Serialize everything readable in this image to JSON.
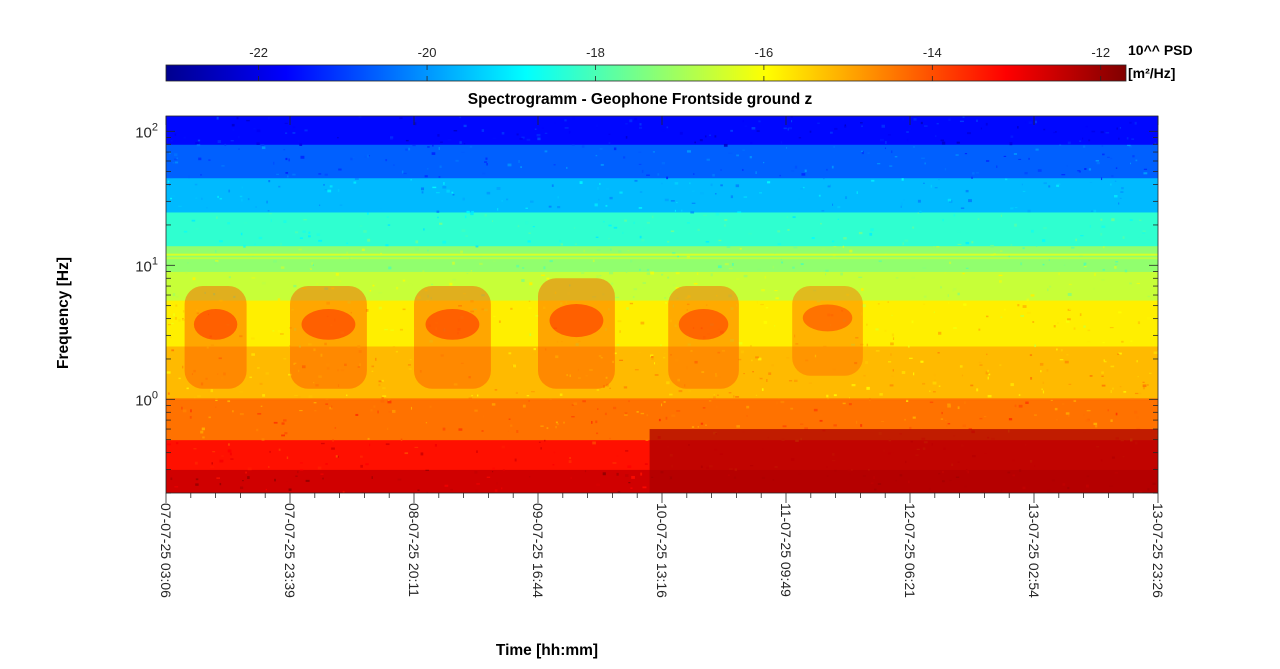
{
  "chart_data": {
    "type": "heatmap",
    "title": "Spectrogramm - Geophone Frontside ground z",
    "xlabel": "Time [hh:mm]",
    "ylabel": "Frequency [Hz]",
    "colorbar": {
      "title": "10^^ PSD",
      "unit": "[m²/Hz]",
      "range": [
        -23.1,
        -11.7
      ],
      "ticks": [
        -22,
        -20,
        -18,
        -16,
        -14,
        -12
      ],
      "colormap": "jet"
    },
    "x_ticks": [
      "07-07-25 03:06",
      "07-07-25 23:39",
      "08-07-25 20:11",
      "09-07-25 16:44",
      "10-07-25 13:16",
      "11-07-25 09:49",
      "12-07-25 06:21",
      "13-07-25 02:54",
      "13-07-25 23:26"
    ],
    "y_scale": "log",
    "y_range": [
      0.2,
      130
    ],
    "y_ticks": [
      1,
      10,
      100
    ],
    "y_tick_labels": {
      "base": "10",
      "exponents": [
        "0",
        "1",
        "2"
      ]
    },
    "bands": [
      {
        "f_min": 0.2,
        "f_max": 0.3,
        "psd": -12.6
      },
      {
        "f_min": 0.3,
        "f_max": 0.5,
        "psd": -13.3
      },
      {
        "f_min": 0.5,
        "f_max": 1.0,
        "psd": -14.4
      },
      {
        "f_min": 1.0,
        "f_max": 2.5,
        "psd": -15.2
      },
      {
        "f_min": 2.5,
        "f_max": 5.5,
        "psd": -15.8
      },
      {
        "f_min": 5.5,
        "f_max": 9.0,
        "psd": -16.6
      },
      {
        "f_min": 9.0,
        "f_max": 14.0,
        "psd": -17.2
      },
      {
        "f_min": 14.0,
        "f_max": 25.0,
        "psd": -18.3
      },
      {
        "f_min": 25.0,
        "f_max": 45.0,
        "psd": -19.6
      },
      {
        "f_min": 45.0,
        "f_max": 80.0,
        "psd": -20.6
      },
      {
        "f_min": 80.0,
        "f_max": 130.0,
        "psd": -21.6
      }
    ],
    "line_features": [
      {
        "freq": 12.0,
        "psd": -16.2
      },
      {
        "freq": 11.3,
        "psd": -16.6
      },
      {
        "freq": 1.0,
        "psd": -14.3
      }
    ],
    "daytime_bursts": [
      {
        "t_start": 0.15,
        "t_end": 0.65,
        "f_min": 1.2,
        "f_max": 7.0,
        "psd": -14.0
      },
      {
        "t_start": 1.0,
        "t_end": 1.62,
        "f_min": 1.2,
        "f_max": 7.0,
        "psd": -14.0
      },
      {
        "t_start": 2.0,
        "t_end": 2.62,
        "f_min": 1.2,
        "f_max": 7.0,
        "psd": -14.0
      },
      {
        "t_start": 3.0,
        "t_end": 3.62,
        "f_min": 1.2,
        "f_max": 8.0,
        "psd": -14.0
      },
      {
        "t_start": 4.05,
        "t_end": 4.62,
        "f_min": 1.2,
        "f_max": 7.0,
        "psd": -14.1
      },
      {
        "t_start": 5.05,
        "t_end": 5.62,
        "f_min": 1.5,
        "f_max": 7.0,
        "psd": -14.3
      }
    ],
    "low_frequency_event": {
      "t_start": 3.9,
      "t_end": 8.0,
      "f_min": 0.2,
      "f_max": 0.6,
      "psd": -12.2
    }
  }
}
